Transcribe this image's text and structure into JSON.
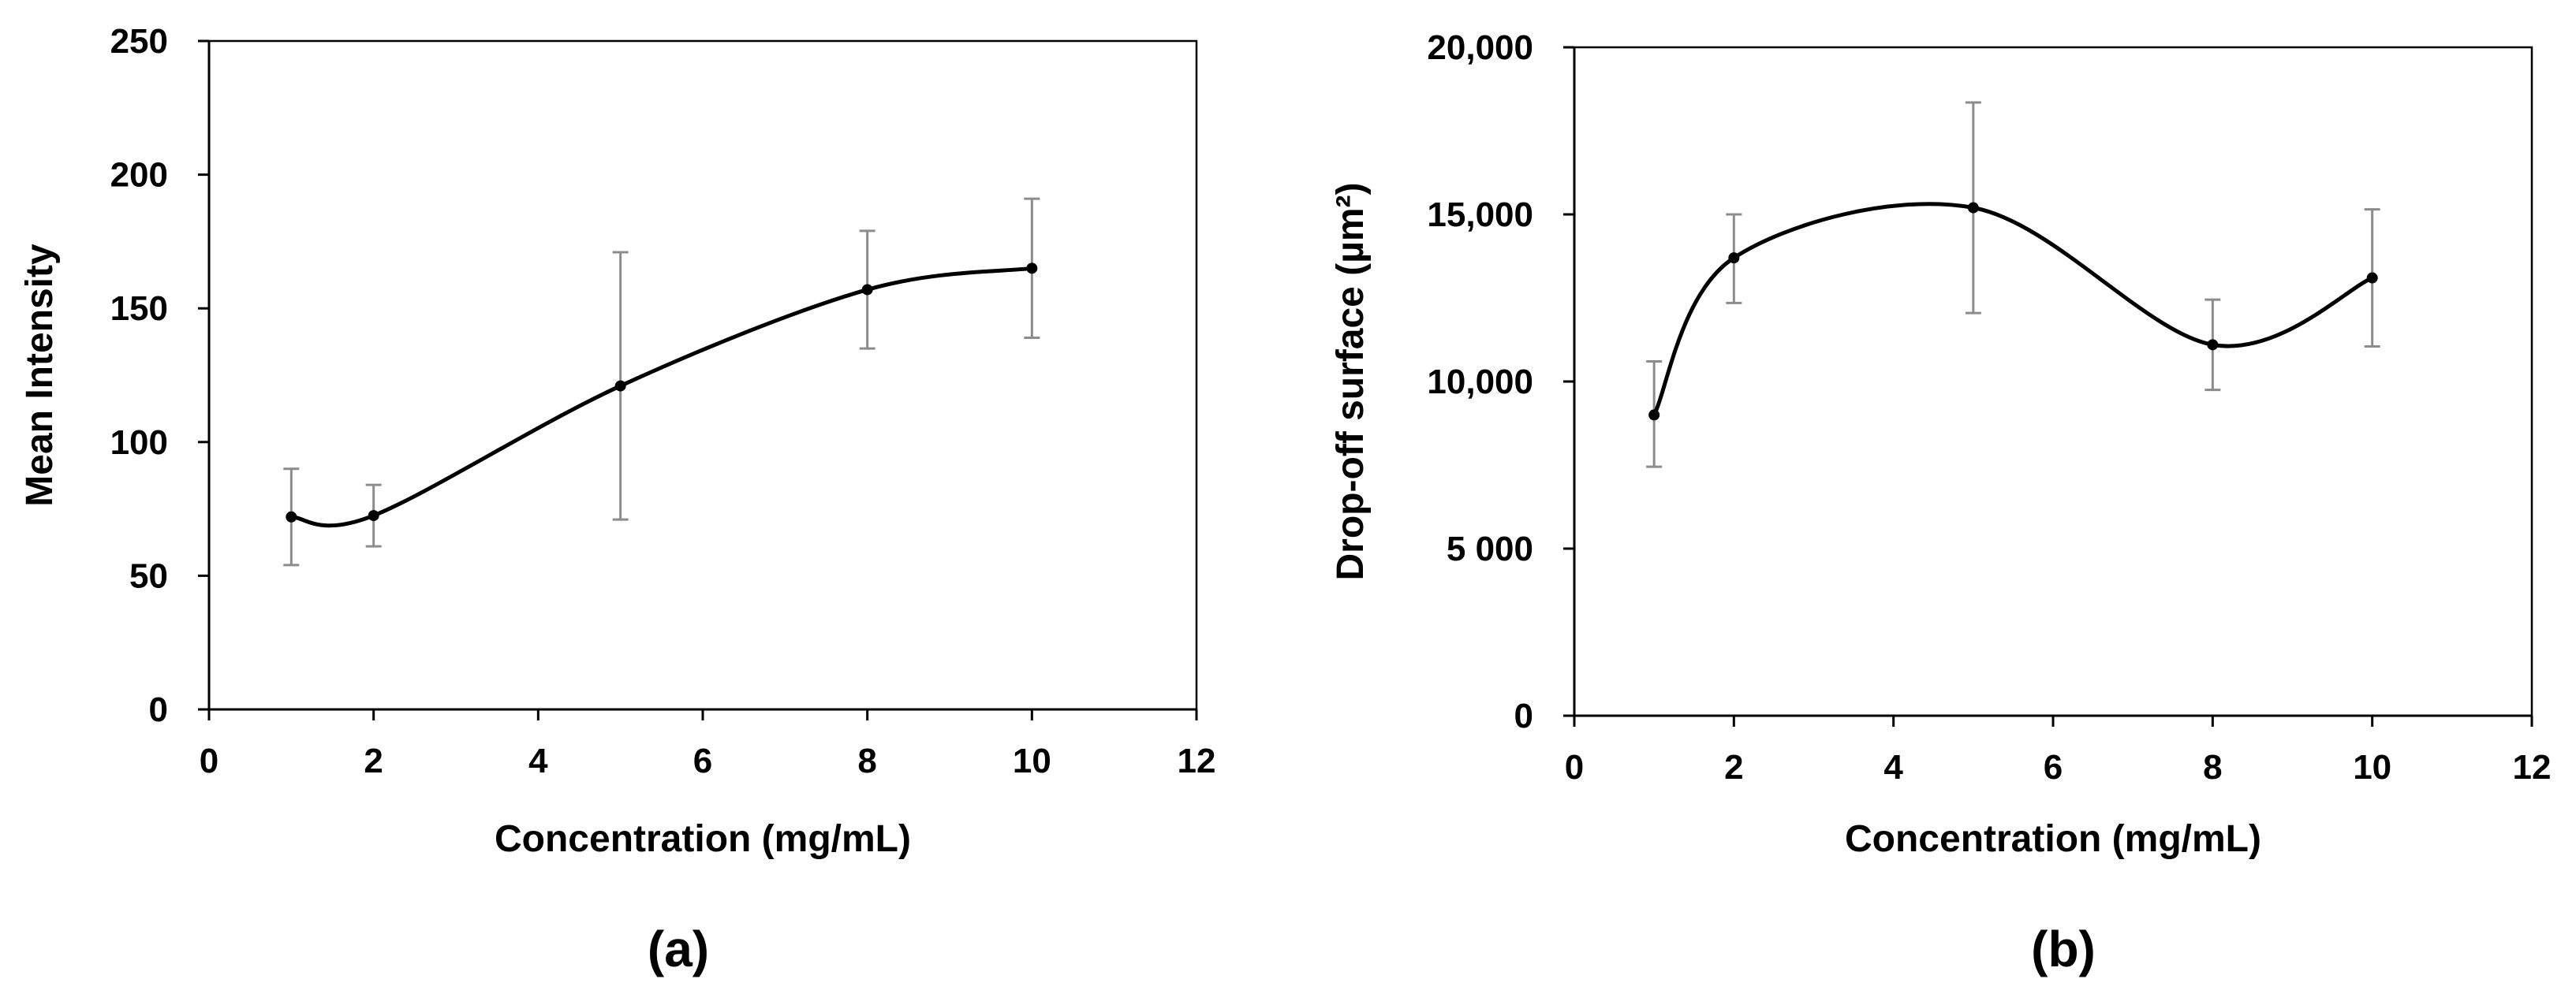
{
  "chart_data": [
    {
      "type": "line",
      "smooth": true,
      "panel_label": "(a)",
      "xlabel": "Concentration (mg/mL)",
      "ylabel": "Mean Intensity",
      "xlim": [
        0,
        12
      ],
      "ylim": [
        0,
        250
      ],
      "xticks": [
        0,
        2,
        4,
        6,
        8,
        10,
        12
      ],
      "xtick_labels": [
        "0",
        "2",
        "4",
        "6",
        "8",
        "10",
        "12"
      ],
      "yticks": [
        0,
        50,
        100,
        150,
        200,
        250
      ],
      "ytick_labels": [
        "0",
        "50",
        "100",
        "150",
        "200",
        "250"
      ],
      "series": [
        {
          "name": "Mean Intensity",
          "x": [
            1,
            2,
            5,
            8,
            10
          ],
          "y": [
            72,
            72.5,
            121,
            157,
            165
          ],
          "err_low": [
            54,
            61,
            71,
            135,
            139
          ],
          "err_high": [
            90,
            84,
            171,
            179,
            191
          ]
        }
      ]
    },
    {
      "type": "line",
      "smooth": true,
      "panel_label": "(b)",
      "xlabel": "Concentration (mg/mL)",
      "ylabel": "Drop-off surface (µm²)",
      "xlim": [
        0,
        12
      ],
      "ylim": [
        0,
        20000
      ],
      "xticks": [
        0,
        2,
        4,
        6,
        8,
        10,
        12
      ],
      "xtick_labels": [
        "0",
        "2",
        "4",
        "6",
        "8",
        "10",
        "12"
      ],
      "yticks": [
        0,
        5000,
        10000,
        15000,
        20000
      ],
      "ytick_labels": [
        "0",
        "5 000",
        "10,000",
        "15,000",
        "20,000"
      ],
      "series": [
        {
          "name": "Drop-off surface",
          "x": [
            1,
            2,
            5,
            8,
            10
          ],
          "y": [
            9000,
            13700,
            15200,
            11100,
            13100
          ],
          "err_low": [
            7450,
            12350,
            12050,
            9750,
            11050
          ],
          "err_high": [
            10600,
            15000,
            18350,
            12450,
            15150
          ]
        }
      ]
    }
  ]
}
